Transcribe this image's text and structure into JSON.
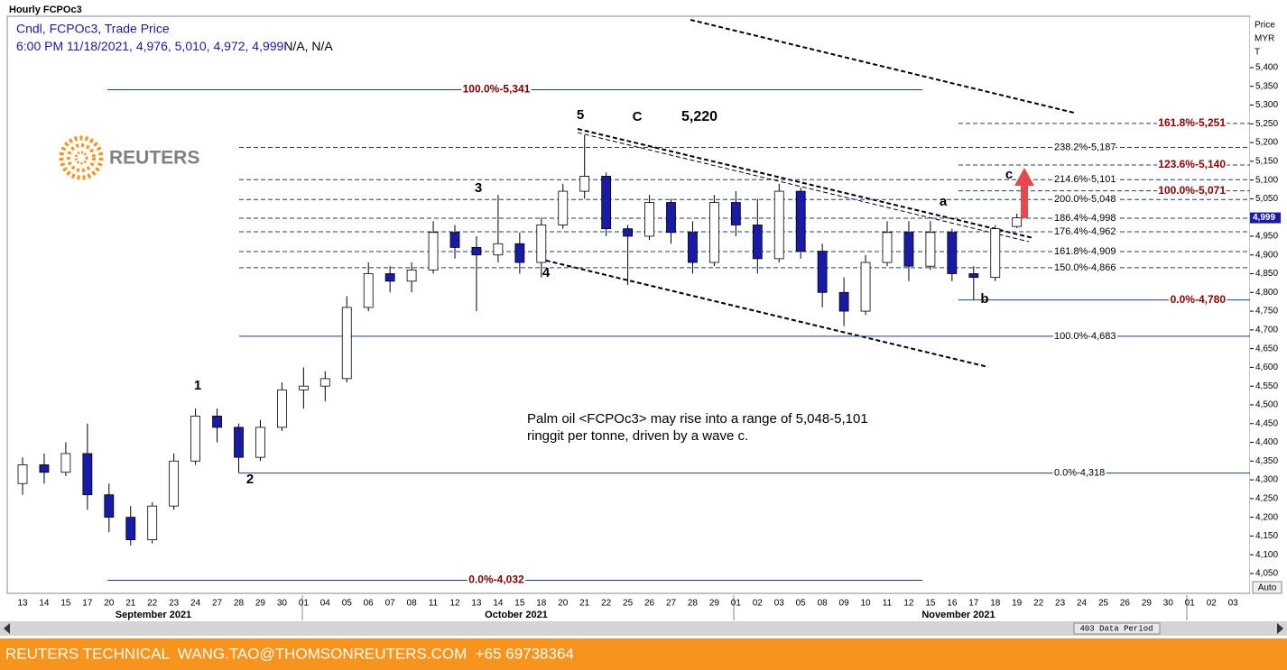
{
  "chart_data": {
    "type": "candlestick",
    "title": "Hourly FCPOc3",
    "legend_line1": "Cndl, FCPOc3, Trade Price",
    "legend_line2": "6:00 PM 11/18/2021, 4,976, 5,010, 4,972, 4,999",
    "legend_line2_tail": "N/A, N/A",
    "axis_header": [
      "Price",
      "MYR",
      "T"
    ],
    "auto_button": "Auto",
    "data_period": "403 Data Period",
    "footer": "REUTERS TECHNICAL  WANG.TAO@THOMSONREUTERS.COM  +65 69738364",
    "logo_text": "REUTERS",
    "months": [
      "September 2021",
      "October 2021",
      "November 2021"
    ],
    "categories": [
      "13",
      "14",
      "15",
      "17",
      "20",
      "21",
      "22",
      "23",
      "24",
      "27",
      "28",
      "29",
      "30",
      "01",
      "04",
      "05",
      "06",
      "07",
      "08",
      "11",
      "12",
      "13",
      "14",
      "15",
      "18",
      "20",
      "21",
      "22",
      "25",
      "26",
      "27",
      "28",
      "29",
      "01",
      "02",
      "03",
      "05",
      "08",
      "09",
      "10",
      "11",
      "12",
      "15",
      "16",
      "17",
      "18",
      "19",
      "22",
      "23",
      "24",
      "25",
      "26",
      "29",
      "30",
      "01",
      "02",
      "03"
    ],
    "candles": {
      "up_color": "#ffffff",
      "down_color": "#1a1aa8",
      "open": [
        4290,
        4340,
        4320,
        4370,
        4260,
        4200,
        4140,
        4230,
        4350,
        4470,
        4440,
        4360,
        4440,
        4540,
        4550,
        4570,
        4760,
        4850,
        4830,
        4860,
        4960,
        4920,
        4900,
        4930,
        4880,
        4980,
        5070,
        5110,
        4970,
        4950,
        5040,
        4960,
        4880,
        5040,
        4980,
        4890,
        5070,
        4910,
        4800,
        4750,
        4880,
        4960,
        4870,
        4960,
        4850,
        4840,
        4976,
        null,
        null,
        null,
        null,
        null,
        null,
        null,
        null,
        null,
        null
      ],
      "high": [
        4360,
        4370,
        4400,
        4450,
        4290,
        4230,
        4240,
        4370,
        4490,
        4490,
        4450,
        4460,
        4560,
        4600,
        4590,
        4790,
        4880,
        4870,
        4880,
        4990,
        4980,
        4950,
        5060,
        4960,
        5000,
        5090,
        5220,
        5120,
        4980,
        5060,
        5050,
        4990,
        5060,
        5070,
        5050,
        5090,
        5080,
        4930,
        4840,
        4900,
        4990,
        4990,
        4990,
        4970,
        4870,
        4980,
        5010,
        null,
        null,
        null,
        null,
        null,
        null,
        null,
        null,
        null,
        null
      ],
      "low": [
        4260,
        4290,
        4310,
        4220,
        4160,
        4125,
        4130,
        4220,
        4340,
        4400,
        4318,
        4350,
        4430,
        4490,
        4510,
        4560,
        4750,
        4800,
        4800,
        4850,
        4890,
        4750,
        4880,
        4850,
        4840,
        4970,
        5050,
        4950,
        4820,
        4940,
        4930,
        4850,
        4870,
        4950,
        4850,
        4880,
        4890,
        4760,
        4710,
        4740,
        4870,
        4830,
        4860,
        4830,
        4780,
        4830,
        4972,
        null,
        null,
        null,
        null,
        null,
        null,
        null,
        null,
        null,
        null
      ],
      "close": [
        4340,
        4320,
        4370,
        4260,
        4200,
        4140,
        4230,
        4350,
        4470,
        4440,
        4360,
        4440,
        4540,
        4550,
        4570,
        4760,
        4850,
        4830,
        4860,
        4960,
        4920,
        4900,
        4930,
        4880,
        4980,
        5070,
        5110,
        4970,
        4950,
        5040,
        4960,
        4880,
        5040,
        4980,
        4890,
        5070,
        4910,
        4800,
        4750,
        4880,
        4960,
        4870,
        4960,
        4850,
        4840,
        4970,
        4999,
        null,
        null,
        null,
        null,
        null,
        null,
        null,
        null,
        null,
        null
      ]
    },
    "ylim": [
      3997,
      5537
    ],
    "yticks": [
      {
        "value": 4050,
        "label": "4,050"
      },
      {
        "value": 4100,
        "label": "4,100"
      },
      {
        "value": 4150,
        "label": "4,150"
      },
      {
        "value": 4200,
        "label": "4,200"
      },
      {
        "value": 4250,
        "label": "4,250"
      },
      {
        "value": 4300,
        "label": "4,300"
      },
      {
        "value": 4350,
        "label": "4,350"
      },
      {
        "value": 4400,
        "label": "4,400"
      },
      {
        "value": 4450,
        "label": "4,450"
      },
      {
        "value": 4500,
        "label": "4,500"
      },
      {
        "value": 4550,
        "label": "4,550"
      },
      {
        "value": 4600,
        "label": "4,600"
      },
      {
        "value": 4650,
        "label": "4,650"
      },
      {
        "value": 4700,
        "label": "4,700"
      },
      {
        "value": 4750,
        "label": "4,750"
      },
      {
        "value": 4800,
        "label": "4,800"
      },
      {
        "value": 4850,
        "label": "4,850"
      },
      {
        "value": 4900,
        "label": "4,900"
      },
      {
        "value": 4950,
        "label": "4,950"
      },
      {
        "value": 5050,
        "label": "5,050"
      },
      {
        "value": 5100,
        "label": "5,100"
      },
      {
        "value": 5150,
        "label": "5,150"
      },
      {
        "value": 5200,
        "label": "5,200"
      },
      {
        "value": 5250,
        "label": "5,250"
      },
      {
        "value": 5300,
        "label": "5,300"
      },
      {
        "value": 5350,
        "label": "5,350"
      },
      {
        "value": 5400,
        "label": "5,400"
      }
    ],
    "last_price": {
      "value": 4999,
      "label": "4,999"
    },
    "fib_left": [
      {
        "value": 5341,
        "label": "100.0%-5,341",
        "dash": false
      },
      {
        "value": 4032,
        "label": "0.0%-4,032",
        "dash": false
      }
    ],
    "fib_mid": [
      {
        "value": 5187,
        "label": "238.2%-5,187",
        "dash": true
      },
      {
        "value": 5101,
        "label": "214.6%-5,101",
        "dash": true
      },
      {
        "value": 5048,
        "label": "200.0%-5,048",
        "dash": true
      },
      {
        "value": 4998,
        "label": "186.4%-4,998",
        "dash": true
      },
      {
        "value": 4962,
        "label": "176.4%-4,962",
        "dash": true
      },
      {
        "value": 4909,
        "label": "161.8%-4,909",
        "dash": true
      },
      {
        "value": 4866,
        "label": "150.0%-4,866",
        "dash": true
      },
      {
        "value": 4683,
        "label": "100.0%-4,683",
        "dash": false
      },
      {
        "value": 4318,
        "label": "0.0%-4,318",
        "dash": false
      }
    ],
    "fib_right": [
      {
        "value": 5251,
        "label": "161.8%-5,251",
        "dash": true
      },
      {
        "value": 5140,
        "label": "123.6%-5,140",
        "dash": true
      },
      {
        "value": 5071,
        "label": "100.0%-5,071",
        "dash": true
      },
      {
        "value": 4780,
        "label": "0.0%-4,780",
        "dash": false
      }
    ],
    "wave_labels": [
      "1",
      "2",
      "3",
      "4",
      "5",
      "C",
      "5,220",
      "a",
      "b",
      "c"
    ],
    "annotation": [
      "Palm oil <FCPOc3> may rise into a range of 5,048-5,101",
      "ringgit per tonne, driven by a wave c."
    ]
  }
}
